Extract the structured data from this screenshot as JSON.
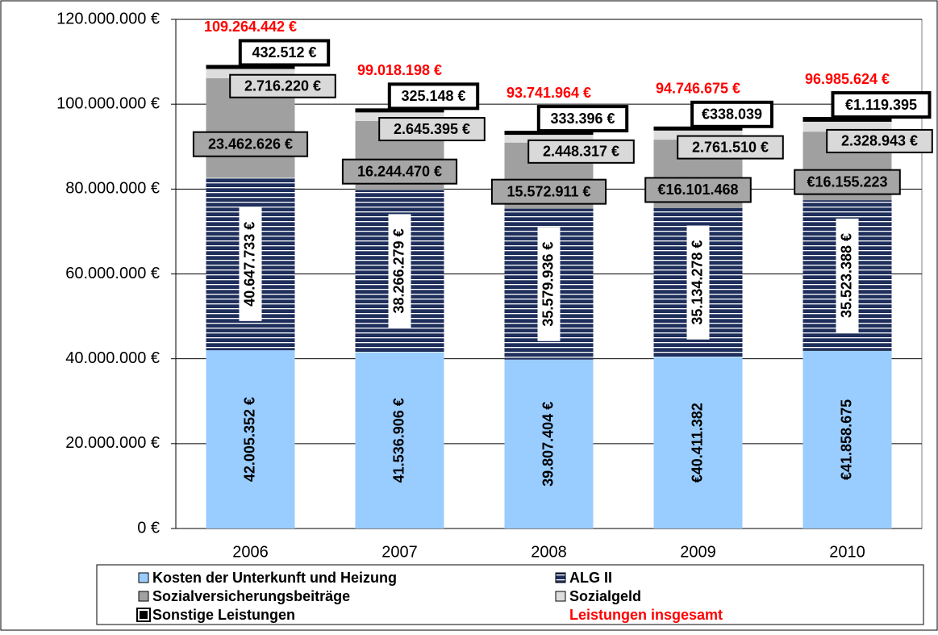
{
  "chart_data": {
    "type": "bar",
    "stacked": true,
    "categories": [
      "2006",
      "2007",
      "2008",
      "2009",
      "2010"
    ],
    "ylim": [
      0,
      120000000
    ],
    "yticks": [
      {
        "value": 0,
        "label": "0 €"
      },
      {
        "value": 20000000,
        "label": "20.000.000 €"
      },
      {
        "value": 40000000,
        "label": "40.000.000 €"
      },
      {
        "value": 60000000,
        "label": "60.000.000 €"
      },
      {
        "value": 80000000,
        "label": "80.000.000 €"
      },
      {
        "value": 100000000,
        "label": "100.000.000 €"
      },
      {
        "value": 120000000,
        "label": "120.000.000 €"
      }
    ],
    "grid": true,
    "legend": "bottom",
    "series": [
      {
        "name": "Kosten der Unterkunft und Heizung",
        "color": "#99ccff",
        "values": [
          42005352,
          41536906,
          39807404,
          40411382,
          41858675
        ],
        "value_labels": [
          "42.005.352 €",
          "41.536.906 €",
          "39.807.404 €",
          "€40.411.382",
          "€41.858.675"
        ]
      },
      {
        "name": "ALG II",
        "color": "#1f2f5c",
        "values": [
          40647733,
          38266279,
          35579936,
          35134278,
          35523388
        ],
        "value_labels": [
          "40.647.733 €",
          "38.266.279 €",
          "35.579.936 €",
          "35.134.278 €",
          "35.523.388 €"
        ]
      },
      {
        "name": "Sozialversicherungsbeiträge",
        "color": "#a0a0a0",
        "values": [
          23462626,
          16244470,
          15572911,
          16101468,
          16155223
        ],
        "value_labels": [
          "23.462.626 €",
          "16.244.470 €",
          "15.572.911 €",
          "€16.101.468",
          "€16.155.223"
        ]
      },
      {
        "name": "Sozialgeld",
        "color": "#dddddd",
        "values": [
          2716220,
          2645395,
          2448317,
          2761510,
          2328943
        ],
        "value_labels": [
          "2.716.220 €",
          "2.645.395 €",
          "2.448.317 €",
          "2.761.510 €",
          "2.328.943 €"
        ]
      },
      {
        "name": "Sonstige Leistungen",
        "color": "#000000",
        "values": [
          432512,
          325148,
          333396,
          338039,
          1119395
        ],
        "value_labels": [
          "432.512 €",
          "325.148 €",
          "333.396 €",
          "€338.039",
          "€1.119.395"
        ]
      }
    ],
    "totals": {
      "name": "Leistungen insgesamt",
      "color": "#ff0000",
      "values": [
        109264442,
        99018198,
        93741964,
        94746675,
        96985624
      ],
      "value_labels": [
        "109.264.442 €",
        "99.018.198 €",
        "93.741.964 €",
        "94.746.675 €",
        "96.985.624 €"
      ]
    }
  }
}
